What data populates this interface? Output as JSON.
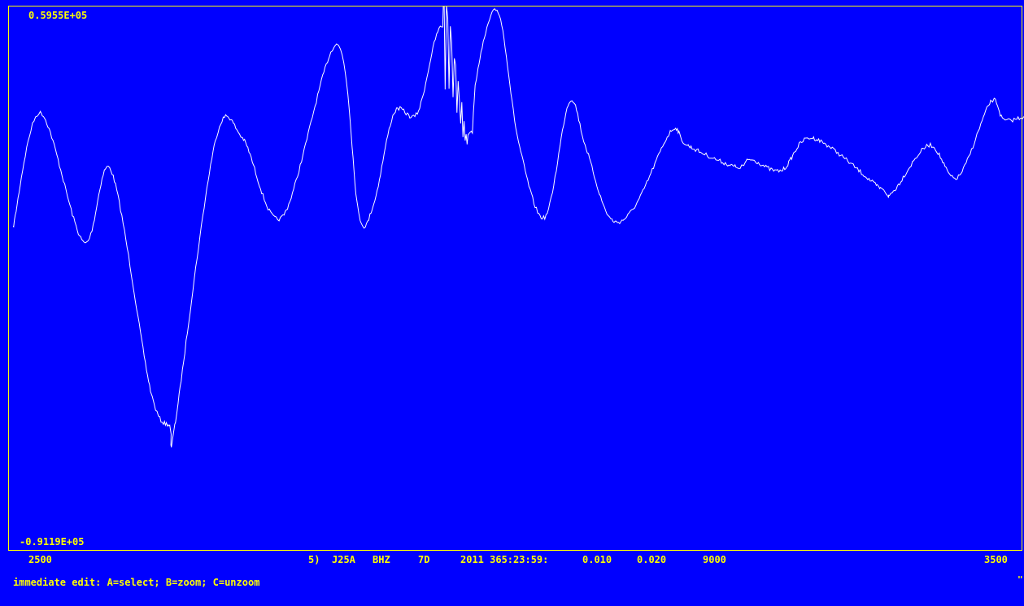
{
  "plot": {
    "y_max_label": "0.5955E+05",
    "y_min_label": "-0.9119E+05",
    "x_start_label": "2500",
    "x_end_label": "3500"
  },
  "trace_info": {
    "index": "5)",
    "station": "J25A",
    "channel": "BHZ",
    "network": "7D",
    "time": "2011 365:23:59:",
    "val1": "0.010",
    "val2": "0.020",
    "npts": "9000"
  },
  "status": {
    "prompt": "immediate edit: A=select; B=zoom; C=unzoom",
    "corner": "\""
  },
  "colors": {
    "background": "#0000FF",
    "text": "#FFFF00",
    "trace": "#FFFFFF"
  },
  "chart_data": {
    "type": "line",
    "xlim": [
      2500,
      3500
    ],
    "ylim": [
      -91190,
      59550
    ],
    "x": [
      2500,
      2527,
      2570,
      2597,
      2636,
      2655,
      2660,
      2700,
      2727,
      2766,
      2820,
      2842,
      2857,
      2877,
      2900,
      2925,
      2950,
      2960,
      2980,
      3000,
      3026,
      3050,
      3066,
      3090,
      3115,
      3151,
      3167,
      3215,
      3230,
      3260,
      3291,
      3358,
      3370,
      3406,
      3434,
      3467,
      3480,
      3500
    ],
    "y": [
      -2000,
      30000,
      -6000,
      14000,
      -47000,
      -57000,
      -57000,
      22000,
      23000,
      1000,
      49000,
      2000,
      5000,
      30000,
      30000,
      54000,
      22000,
      43000,
      58000,
      22000,
      1000,
      33000,
      21000,
      1000,
      4000,
      25000,
      21000,
      15000,
      17000,
      14000,
      23000,
      9000,
      8000,
      21000,
      12000,
      33000,
      28000,
      29000
    ]
  }
}
